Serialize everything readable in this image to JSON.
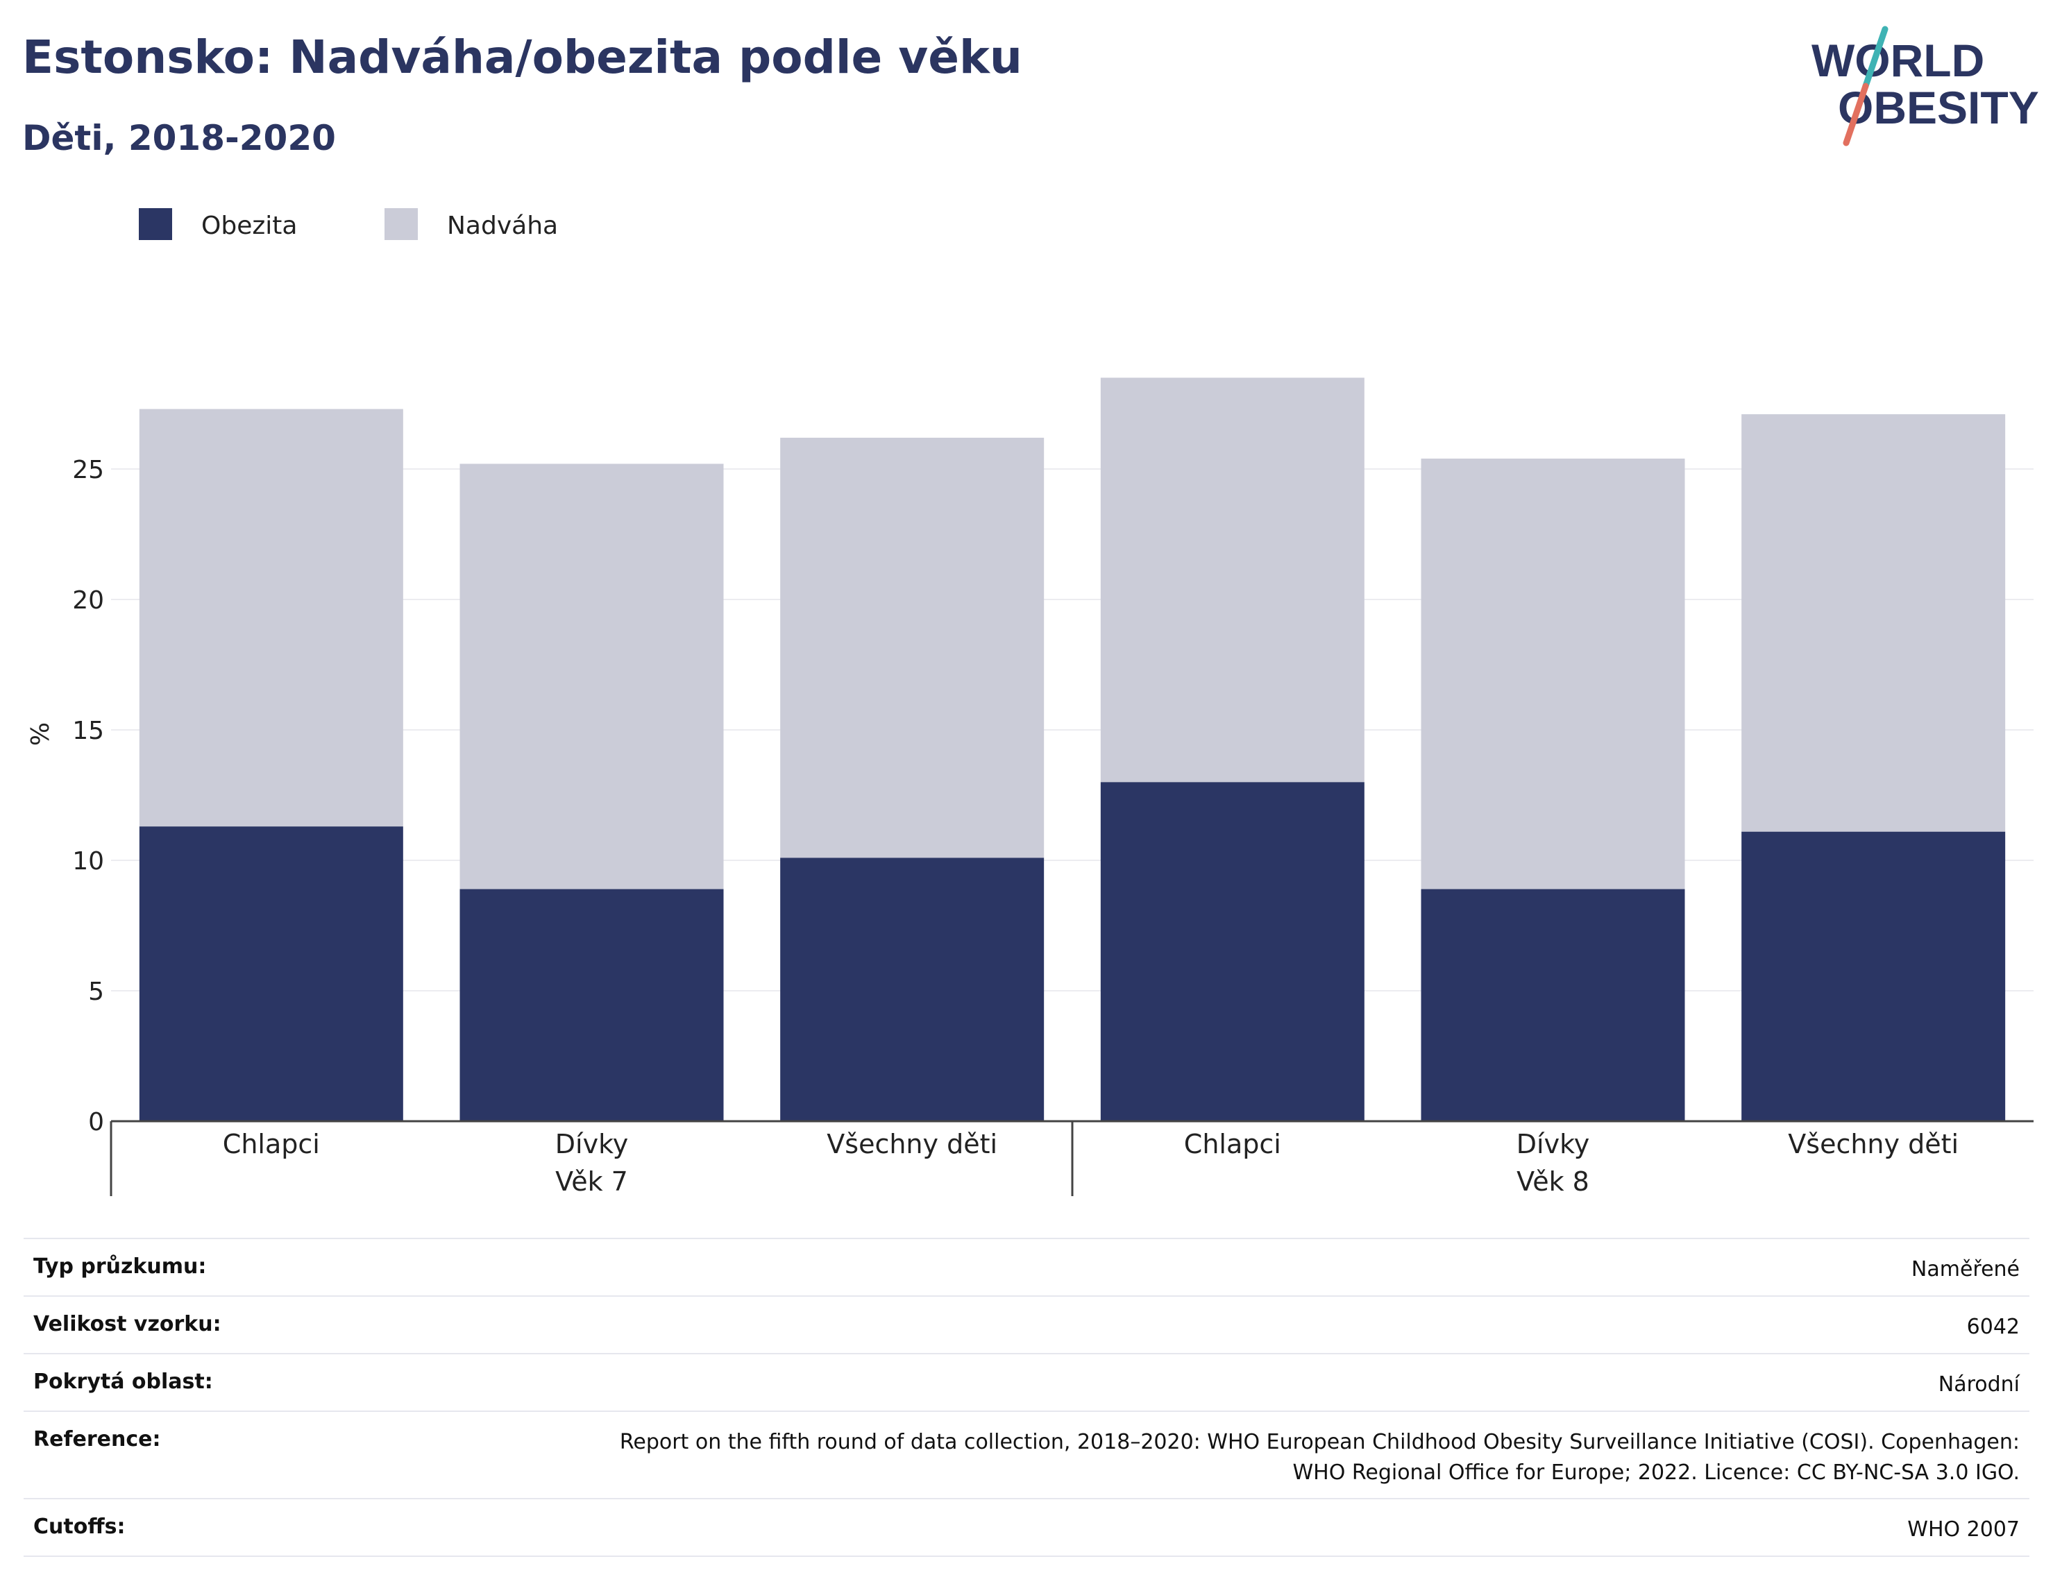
{
  "title": "Estonsko: Nadváha/obezita podle věku",
  "subtitle": "Děti, 2018-2020",
  "logo": {
    "line1": "WORLD",
    "line2": "OBESITY"
  },
  "colors": {
    "obesity": "#2b3664",
    "overweight": "#cbccd8",
    "text": "#2b3561",
    "logo_teal": "#3fb3b4",
    "logo_red": "#e2705f"
  },
  "chart_data": {
    "type": "bar",
    "stacked": true,
    "ylabel": "%",
    "ylim": [
      0,
      30
    ],
    "yticks": [
      0,
      5,
      10,
      15,
      20,
      25
    ],
    "legend_position": "top-left",
    "categories": [
      "Chlapci",
      "Dívky",
      "Všechny děti",
      "Chlapci",
      "Dívky",
      "Všechny děti"
    ],
    "groups": [
      {
        "label": "Věk 7",
        "span": [
          0,
          2
        ]
      },
      {
        "label": "Věk 8",
        "span": [
          3,
          5
        ]
      }
    ],
    "series": [
      {
        "name": "Obezita",
        "color": "#2b3664",
        "values": [
          11.3,
          8.9,
          10.1,
          13.0,
          8.9,
          11.1
        ]
      },
      {
        "name": "Nadváha",
        "color": "#cbccd8",
        "values": [
          16.0,
          16.3,
          16.1,
          15.5,
          16.5,
          16.0
        ]
      }
    ]
  },
  "details": {
    "survey_type": {
      "label": "Typ průzkumu:",
      "value": "Naměřené"
    },
    "sample_size": {
      "label": "Velikost vzorku:",
      "value": "6042"
    },
    "coverage": {
      "label": "Pokrytá oblast:",
      "value": "Národní"
    },
    "reference": {
      "label": "Reference:",
      "value_line1": "Report on the fifth round of data collection, 2018–2020: WHO European Childhood Obesity Surveillance Initiative (COSI). Copenhagen:",
      "value_line2": "WHO Regional Office for Europe; 2022. Licence: CC BY-NC-SA 3.0 IGO."
    },
    "cutoffs": {
      "label": "Cutoffs:",
      "value": "WHO 2007"
    }
  }
}
